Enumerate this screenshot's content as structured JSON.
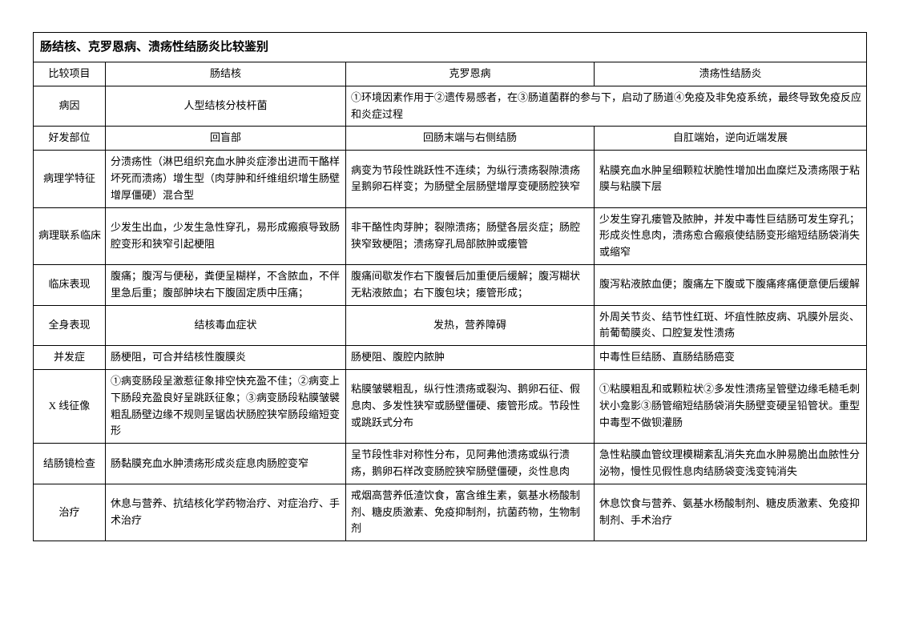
{
  "table": {
    "title": "肠结核、克罗恩病、溃疡性结肠炎比较鉴别",
    "headers": [
      "比较项目",
      "肠结核",
      "克罗恩病",
      "溃疡性结肠炎"
    ],
    "rows": [
      {
        "label": "病因",
        "cells": [
          {
            "text": "人型结核分枝杆菌",
            "align": "center",
            "span": 1
          },
          {
            "text": "①环境因素作用于②遗传易感者，在③肠道菌群的参与下，启动了肠道④免疫及非免疫系统，最终导致免疫反应和炎症过程",
            "align": "left",
            "span": 2
          }
        ]
      },
      {
        "label": "好发部位",
        "cells": [
          {
            "text": "回盲部",
            "align": "center",
            "span": 1
          },
          {
            "text": "回肠末端与右侧结肠",
            "align": "center",
            "span": 1
          },
          {
            "text": "自肛端始，逆向近端发展",
            "align": "center",
            "span": 1
          }
        ]
      },
      {
        "label": "病理学特征",
        "cells": [
          {
            "text": "分溃疡性（淋巴组织充血水肿炎症渗出进而干酪样坏死而溃疡）增生型（肉芽肿和纤维组织增生肠壁增厚僵硬）混合型",
            "align": "left",
            "span": 1
          },
          {
            "text": "病变为节段性跳跃性不连续；为纵行溃疡裂隙溃疡呈鹅卵石样变；为肠壁全层肠壁增厚变硬肠腔狭窄",
            "align": "left",
            "span": 1
          },
          {
            "text": "粘膜充血水肿呈细颗粒状脆性增加出血糜烂及溃疡限于粘膜与粘膜下层",
            "align": "left",
            "span": 1
          }
        ]
      },
      {
        "label": "病理联系临床",
        "cells": [
          {
            "text": "少发生出血，少发生急性穿孔，易形成瘢痕导致肠腔变形和狭窄引起梗阻",
            "align": "left",
            "span": 1
          },
          {
            "text": "非干酪性肉芽肿；裂隙溃疡；肠壁各层炎症；肠腔狭窄致梗阻；溃疡穿孔局部脓肿或瘘管",
            "align": "left",
            "span": 1
          },
          {
            "text": "少发生穿孔瘘管及脓肿，并发中毒性巨结肠可发生穿孔；形成炎性息肉，溃疡愈合瘢痕使结肠变形缩短结肠袋消失或缩窄",
            "align": "left",
            "span": 1
          }
        ]
      },
      {
        "label": "临床表现",
        "cells": [
          {
            "text": "腹痛；腹泻与便秘，粪便呈糊样，不含脓血，不伴里急后重；腹部肿块右下腹固定质中压痛；",
            "align": "left",
            "span": 1
          },
          {
            "text": "腹痛间歇发作右下腹餐后加重便后缓解；腹泻糊状无粘液脓血；右下腹包块；瘘管形成；",
            "align": "left",
            "span": 1
          },
          {
            "text": "腹泻粘液脓血便；腹痛左下腹或下腹痛疼痛便意便后缓解",
            "align": "left",
            "span": 1
          }
        ]
      },
      {
        "label": "全身表现",
        "cells": [
          {
            "text": "结核毒血症状",
            "align": "center",
            "span": 1
          },
          {
            "text": "发热，营养障碍",
            "align": "center",
            "span": 1
          },
          {
            "text": "外周关节炎、结节性红斑、坏疽性脓皮病、巩膜外层炎、前葡萄膜炎、口腔复发性溃疡",
            "align": "left",
            "span": 1
          }
        ]
      },
      {
        "label": "并发症",
        "cells": [
          {
            "text": "肠梗阻，可合并结核性腹膜炎",
            "align": "left",
            "span": 1
          },
          {
            "text": "肠梗阻、腹腔内脓肿",
            "align": "left",
            "span": 1
          },
          {
            "text": "中毒性巨结肠、直肠结肠癌变",
            "align": "left",
            "span": 1
          }
        ]
      },
      {
        "label": "X 线征像",
        "cells": [
          {
            "text": "①病变肠段呈激惹征象排空快充盈不佳；②病变上下肠段充盈良好呈跳跃征象；③病变肠段粘膜皱襞粗乱肠壁边缘不规则呈锯齿状肠腔狭窄肠段缩短变形",
            "align": "left",
            "span": 1
          },
          {
            "text": "粘膜皱襞粗乱，纵行性溃疡或裂沟、鹅卵石征、假息肉、多发性狭窄或肠壁僵硬、瘘管形成。节段性或跳跃式分布",
            "align": "left",
            "span": 1
          },
          {
            "text": "①粘膜粗乱和或颗粒状②多发性溃疡呈管壁边缘毛糙毛刺状小龛影③肠管缩短结肠袋消失肠壁变硬呈铅管状。重型中毒型不做钡灌肠",
            "align": "left",
            "span": 1
          }
        ]
      },
      {
        "label": "结肠镜检查",
        "cells": [
          {
            "text": "肠黏膜充血水肿溃疡形成炎症息肉肠腔变窄",
            "align": "left",
            "span": 1
          },
          {
            "text": "呈节段性非对称性分布，见阿弗他溃疡或纵行溃疡，鹅卵石样改变肠腔狭窄肠壁僵硬，炎性息肉",
            "align": "left",
            "span": 1
          },
          {
            "text": "急性粘膜血管纹理模糊紊乱消失充血水肿易脆出血脓性分泌物，慢性见假性息肉结肠袋变浅变钝消失",
            "align": "left",
            "span": 1
          }
        ]
      },
      {
        "label": "治疗",
        "cells": [
          {
            "text": "休息与营养、抗结核化学药物治疗、对症治疗、手术治疗",
            "align": "left",
            "span": 1
          },
          {
            "text": "戒烟高营养低渣饮食，富含维生素，氨基水杨酸制剂、糖皮质激素、免疫抑制剂，抗菌药物，生物制剂",
            "align": "left",
            "span": 1
          },
          {
            "text": "休息饮食与营养、氨基水杨酸制剂、糖皮质激素、免疫抑制剂、手术治疗",
            "align": "left",
            "span": 1
          }
        ]
      }
    ]
  }
}
